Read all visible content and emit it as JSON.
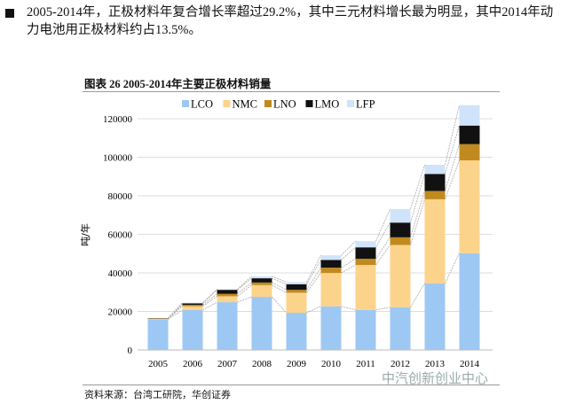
{
  "paragraph": "2005-2014年，正极材料年复合增长率超过29.2%，其中三元材料增长最为明显，其中2014年动力电池用正极材料约占13.5%。",
  "figure_caption": "图表 26 2005-2014年主要正极材料销量",
  "source": "资料来源：台湾工研院，华创证券",
  "watermark": "中汽创新创业中心",
  "chart_data": {
    "type": "bar",
    "stacked": true,
    "title": "",
    "xlabel": "",
    "ylabel": "吨/年",
    "ylim": [
      0,
      120000
    ],
    "yticks": [
      0,
      20000,
      40000,
      60000,
      80000,
      100000,
      120000
    ],
    "grid": true,
    "legend": "top",
    "categories": [
      "2005",
      "2006",
      "2007",
      "2008",
      "2009",
      "2010",
      "2011",
      "2012",
      "2013",
      "2014"
    ],
    "series": [
      {
        "name": "LCO",
        "color": "#9dc8f3",
        "values": [
          15900,
          20800,
          24800,
          27550,
          19300,
          22650,
          20800,
          22200,
          34600,
          50200
        ]
      },
      {
        "name": "NMC",
        "color": "#fcd38a",
        "values": [
          300,
          1850,
          3050,
          6100,
          10400,
          17300,
          23300,
          32300,
          43600,
          48200
        ]
      },
      {
        "name": "LNO",
        "color": "#c08a1e",
        "values": [
          150,
          750,
          1250,
          1350,
          1500,
          2750,
          3200,
          3950,
          4300,
          8400
        ]
      },
      {
        "name": "LMO",
        "color": "#111111",
        "values": [
          150,
          800,
          2100,
          2200,
          2900,
          4000,
          5950,
          7650,
          8850,
          9650
        ]
      },
      {
        "name": "LFP",
        "color": "#cfe3fa",
        "values": [
          0,
          300,
          300,
          1050,
          1100,
          2400,
          3200,
          7050,
          4750,
          10550
        ]
      }
    ]
  }
}
